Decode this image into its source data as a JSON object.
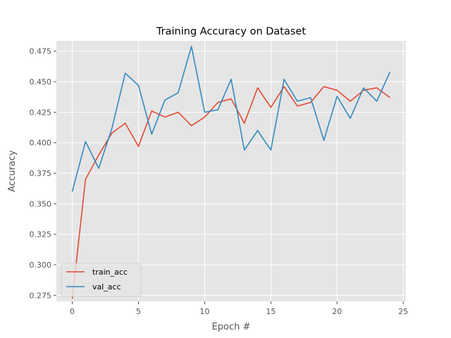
{
  "chart_data": {
    "type": "line",
    "title": "Training Accuracy on Dataset",
    "xlabel": "Epoch #",
    "ylabel": "Accuracy",
    "xlim": [
      -1.2,
      25.2
    ],
    "ylim": [
      0.27,
      0.4835
    ],
    "x_ticks": [
      0,
      5,
      10,
      15,
      20,
      25
    ],
    "y_ticks": [
      0.275,
      0.3,
      0.325,
      0.35,
      0.375,
      0.4,
      0.425,
      0.45,
      0.475
    ],
    "y_tick_labels": [
      "0.275",
      "0.300",
      "0.325",
      "0.350",
      "0.375",
      "0.400",
      "0.425",
      "0.450",
      "0.475"
    ],
    "x": [
      0,
      1,
      2,
      3,
      4,
      5,
      6,
      7,
      8,
      9,
      10,
      11,
      12,
      13,
      14,
      15,
      16,
      17,
      18,
      19,
      20,
      21,
      22,
      23,
      24
    ],
    "series": [
      {
        "name": "train_acc",
        "color": "#e24a33",
        "values": [
          0.272,
          0.37,
          0.39,
          0.408,
          0.416,
          0.397,
          0.426,
          0.421,
          0.425,
          0.414,
          0.421,
          0.433,
          0.436,
          0.416,
          0.445,
          0.429,
          0.446,
          0.43,
          0.433,
          0.446,
          0.443,
          0.434,
          0.443,
          0.445,
          0.437
        ]
      },
      {
        "name": "val_acc",
        "color": "#348abd",
        "values": [
          0.36,
          0.401,
          0.379,
          0.412,
          0.457,
          0.447,
          0.407,
          0.435,
          0.441,
          0.479,
          0.425,
          0.427,
          0.452,
          0.394,
          0.41,
          0.394,
          0.452,
          0.434,
          0.437,
          0.402,
          0.438,
          0.42,
          0.445,
          0.434,
          0.458
        ]
      }
    ],
    "grid": true,
    "legend_position": "lower-left",
    "plot_background": "#e5e5e5",
    "grid_color": "#ffffff"
  }
}
